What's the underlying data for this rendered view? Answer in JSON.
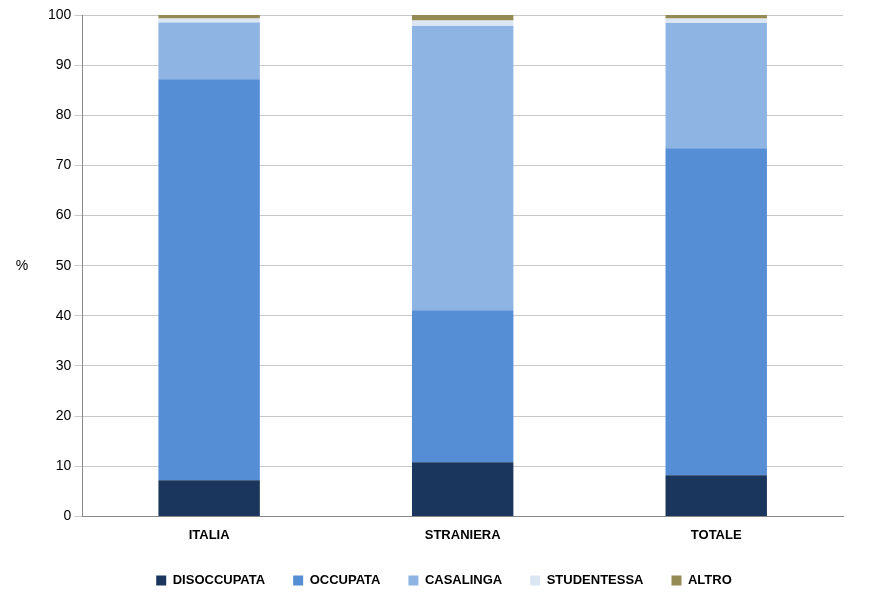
{
  "chart_data": {
    "type": "bar",
    "stacked": true,
    "y_label": "%",
    "categories": [
      "ITALIA",
      "STRANIERA",
      "TOTALE"
    ],
    "series": [
      {
        "name": "DISOCCUPATA",
        "color": "#1b365d",
        "values": [
          7.2,
          10.8,
          8.2
        ]
      },
      {
        "name": "OCCUPATA",
        "color": "#558ed5",
        "values": [
          80.0,
          30.3,
          65.2
        ]
      },
      {
        "name": "CASALINGA",
        "color": "#8eb4e3",
        "values": [
          11.3,
          56.7,
          25.0
        ]
      },
      {
        "name": "STUDENTESSA",
        "color": "#dce6f2",
        "values": [
          0.8,
          1.1,
          0.9
        ]
      },
      {
        "name": "ALTRO",
        "color": "#948a54",
        "values": [
          0.7,
          1.1,
          0.7
        ]
      }
    ],
    "ylim": [
      0,
      100
    ],
    "yticks": [
      0,
      10,
      20,
      30,
      40,
      50,
      60,
      70,
      80,
      90,
      100
    ],
    "grid": true,
    "legend": "bottom"
  }
}
